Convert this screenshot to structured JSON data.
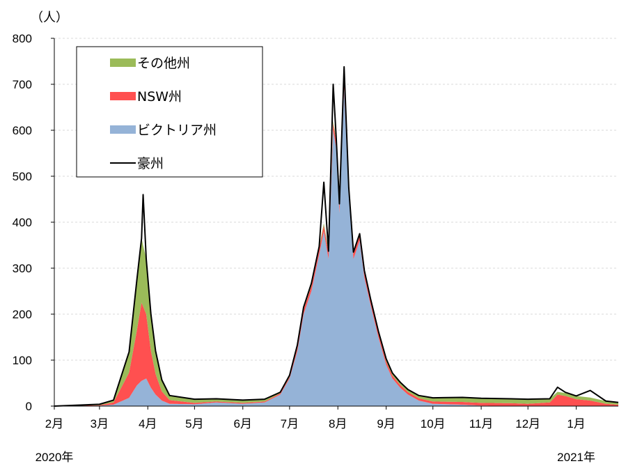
{
  "chart_data": {
    "type": "area",
    "ylabel": "（人）",
    "ylim": [
      0,
      800
    ],
    "yticks": [
      0,
      100,
      200,
      300,
      400,
      500,
      600,
      700,
      800
    ],
    "x_range": [
      "2020-02-01",
      "2021-01-28"
    ],
    "months": [
      {
        "date": "2020-02-01",
        "label": "2月"
      },
      {
        "date": "2020-03-01",
        "label": "3月"
      },
      {
        "date": "2020-04-01",
        "label": "4月"
      },
      {
        "date": "2020-05-01",
        "label": "5月"
      },
      {
        "date": "2020-06-01",
        "label": "6月"
      },
      {
        "date": "2020-07-01",
        "label": "7月"
      },
      {
        "date": "2020-08-01",
        "label": "8月"
      },
      {
        "date": "2020-09-01",
        "label": "9月"
      },
      {
        "date": "2020-10-01",
        "label": "10月"
      },
      {
        "date": "2020-11-01",
        "label": "11月"
      },
      {
        "date": "2020-12-01",
        "label": "12月"
      },
      {
        "date": "2021-01-01",
        "label": "1月"
      }
    ],
    "year_labels": [
      {
        "text": "2020年",
        "date": "2020-02-01"
      },
      {
        "text": "2021年",
        "date": "2021-01-01"
      }
    ],
    "grid": "horizontal dashed",
    "legend_position": "top-left",
    "stacking": "stacked",
    "series": [
      {
        "name": "ビクトリア州",
        "kind": "area",
        "color": "#95b3d7",
        "points": [
          [
            "2020-02-01",
            0
          ],
          [
            "2020-03-01",
            1
          ],
          [
            "2020-03-10",
            3
          ],
          [
            "2020-03-20",
            18
          ],
          [
            "2020-03-25",
            45
          ],
          [
            "2020-03-28",
            55
          ],
          [
            "2020-03-31",
            60
          ],
          [
            "2020-04-03",
            40
          ],
          [
            "2020-04-06",
            25
          ],
          [
            "2020-04-10",
            12
          ],
          [
            "2020-04-15",
            5
          ],
          [
            "2020-05-01",
            4
          ],
          [
            "2020-05-15",
            8
          ],
          [
            "2020-06-01",
            5
          ],
          [
            "2020-06-15",
            8
          ],
          [
            "2020-06-25",
            25
          ],
          [
            "2020-07-01",
            60
          ],
          [
            "2020-07-06",
            120
          ],
          [
            "2020-07-10",
            200
          ],
          [
            "2020-07-15",
            250
          ],
          [
            "2020-07-20",
            330
          ],
          [
            "2020-07-23",
            380
          ],
          [
            "2020-07-26",
            320
          ],
          [
            "2020-07-29",
            600
          ],
          [
            "2020-07-31",
            560
          ],
          [
            "2020-08-02",
            420
          ],
          [
            "2020-08-05",
            690
          ],
          [
            "2020-08-08",
            460
          ],
          [
            "2020-08-11",
            320
          ],
          [
            "2020-08-15",
            360
          ],
          [
            "2020-08-18",
            280
          ],
          [
            "2020-08-22",
            220
          ],
          [
            "2020-08-27",
            150
          ],
          [
            "2020-09-01",
            90
          ],
          [
            "2020-09-05",
            60
          ],
          [
            "2020-09-10",
            40
          ],
          [
            "2020-09-15",
            25
          ],
          [
            "2020-09-22",
            12
          ],
          [
            "2020-10-01",
            5
          ],
          [
            "2020-10-20",
            3
          ],
          [
            "2020-11-01",
            1
          ],
          [
            "2020-12-01",
            0
          ],
          [
            "2021-01-28",
            0
          ]
        ]
      },
      {
        "name": "NSW州",
        "kind": "area",
        "color": "#ff5050",
        "points": [
          [
            "2020-02-01",
            0
          ],
          [
            "2020-03-01",
            1
          ],
          [
            "2020-03-10",
            5
          ],
          [
            "2020-03-20",
            55
          ],
          [
            "2020-03-25",
            120
          ],
          [
            "2020-03-28",
            170
          ],
          [
            "2020-03-31",
            140
          ],
          [
            "2020-04-03",
            80
          ],
          [
            "2020-04-06",
            45
          ],
          [
            "2020-04-10",
            20
          ],
          [
            "2020-04-15",
            8
          ],
          [
            "2020-05-01",
            3
          ],
          [
            "2020-05-15",
            2
          ],
          [
            "2020-06-01",
            2
          ],
          [
            "2020-06-15",
            2
          ],
          [
            "2020-07-01",
            3
          ],
          [
            "2020-07-10",
            10
          ],
          [
            "2020-07-20",
            12
          ],
          [
            "2020-07-29",
            15
          ],
          [
            "2020-08-05",
            14
          ],
          [
            "2020-08-15",
            10
          ],
          [
            "2020-08-27",
            8
          ],
          [
            "2020-09-10",
            6
          ],
          [
            "2020-09-22",
            5
          ],
          [
            "2020-10-01",
            5
          ],
          [
            "2020-10-20",
            6
          ],
          [
            "2020-11-01",
            6
          ],
          [
            "2020-11-20",
            6
          ],
          [
            "2020-12-01",
            5
          ],
          [
            "2020-12-15",
            8
          ],
          [
            "2020-12-20",
            25
          ],
          [
            "2020-12-25",
            22
          ],
          [
            "2021-01-01",
            15
          ],
          [
            "2021-01-10",
            12
          ],
          [
            "2021-01-20",
            5
          ],
          [
            "2021-01-28",
            3
          ]
        ]
      },
      {
        "name": "その他州",
        "kind": "area",
        "color": "#9bbb59",
        "points": [
          [
            "2020-02-01",
            0
          ],
          [
            "2020-03-01",
            2
          ],
          [
            "2020-03-10",
            5
          ],
          [
            "2020-03-20",
            45
          ],
          [
            "2020-03-25",
            110
          ],
          [
            "2020-03-28",
            140
          ],
          [
            "2020-03-31",
            120
          ],
          [
            "2020-04-03",
            80
          ],
          [
            "2020-04-06",
            50
          ],
          [
            "2020-04-10",
            25
          ],
          [
            "2020-04-15",
            10
          ],
          [
            "2020-05-01",
            8
          ],
          [
            "2020-05-15",
            6
          ],
          [
            "2020-06-01",
            6
          ],
          [
            "2020-06-15",
            5
          ],
          [
            "2020-07-01",
            4
          ],
          [
            "2020-07-15",
            5
          ],
          [
            "2020-08-05",
            5
          ],
          [
            "2020-08-27",
            5
          ],
          [
            "2020-09-22",
            6
          ],
          [
            "2020-10-01",
            8
          ],
          [
            "2020-10-20",
            10
          ],
          [
            "2020-11-01",
            10
          ],
          [
            "2020-11-20",
            10
          ],
          [
            "2020-12-01",
            10
          ],
          [
            "2020-12-15",
            8
          ],
          [
            "2020-12-20",
            6
          ],
          [
            "2021-01-01",
            7
          ],
          [
            "2021-01-20",
            6
          ],
          [
            "2021-01-28",
            5
          ]
        ]
      },
      {
        "name": "豪州",
        "kind": "line",
        "color": "#000000",
        "points": [
          [
            "2020-02-01",
            0
          ],
          [
            "2020-03-01",
            4
          ],
          [
            "2020-03-10",
            13
          ],
          [
            "2020-03-20",
            118
          ],
          [
            "2020-03-25",
            275
          ],
          [
            "2020-03-28",
            365
          ],
          [
            "2020-03-29",
            460
          ],
          [
            "2020-03-31",
            320
          ],
          [
            "2020-04-03",
            200
          ],
          [
            "2020-04-06",
            120
          ],
          [
            "2020-04-10",
            57
          ],
          [
            "2020-04-15",
            23
          ],
          [
            "2020-05-01",
            15
          ],
          [
            "2020-05-15",
            16
          ],
          [
            "2020-06-01",
            13
          ],
          [
            "2020-06-15",
            15
          ],
          [
            "2020-06-25",
            30
          ],
          [
            "2020-07-01",
            67
          ],
          [
            "2020-07-06",
            133
          ],
          [
            "2020-07-10",
            215
          ],
          [
            "2020-07-15",
            267
          ],
          [
            "2020-07-20",
            347
          ],
          [
            "2020-07-23",
            487
          ],
          [
            "2020-07-26",
            337
          ],
          [
            "2020-07-29",
            700
          ],
          [
            "2020-07-31",
            580
          ],
          [
            "2020-08-02",
            440
          ],
          [
            "2020-08-05",
            738
          ],
          [
            "2020-08-08",
            475
          ],
          [
            "2020-08-11",
            335
          ],
          [
            "2020-08-15",
            375
          ],
          [
            "2020-08-18",
            295
          ],
          [
            "2020-08-22",
            233
          ],
          [
            "2020-08-27",
            163
          ],
          [
            "2020-09-01",
            103
          ],
          [
            "2020-09-05",
            72
          ],
          [
            "2020-09-10",
            52
          ],
          [
            "2020-09-15",
            36
          ],
          [
            "2020-09-22",
            23
          ],
          [
            "2020-10-01",
            18
          ],
          [
            "2020-10-20",
            19
          ],
          [
            "2020-11-01",
            17
          ],
          [
            "2020-11-20",
            16
          ],
          [
            "2020-12-01",
            15
          ],
          [
            "2020-12-15",
            16
          ],
          [
            "2020-12-20",
            41
          ],
          [
            "2020-12-25",
            30
          ],
          [
            "2021-01-01",
            22
          ],
          [
            "2021-01-10",
            34
          ],
          [
            "2021-01-20",
            11
          ],
          [
            "2021-01-28",
            8
          ]
        ]
      }
    ],
    "legend": [
      {
        "name": "その他州",
        "kind": "area",
        "color": "#9bbb59"
      },
      {
        "name": "NSW州",
        "kind": "area",
        "color": "#ff5050"
      },
      {
        "name": "ビクトリア州",
        "kind": "area",
        "color": "#95b3d7"
      },
      {
        "name": "豪州",
        "kind": "line",
        "color": "#000000"
      }
    ]
  }
}
